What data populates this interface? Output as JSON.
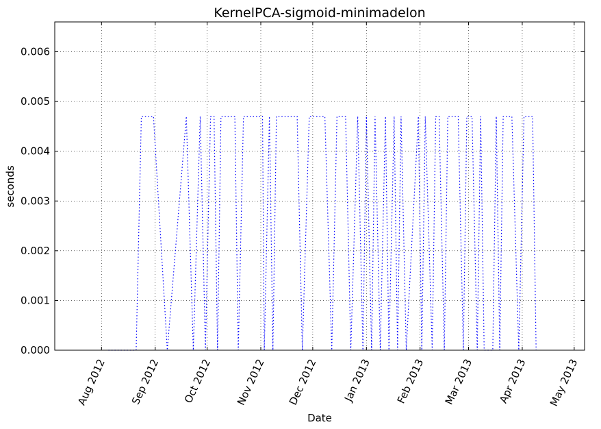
{
  "chart_data": {
    "type": "line",
    "title": "KernelPCA-sigmoid-minimadelon",
    "xlabel": "Date",
    "ylabel": "seconds",
    "x_ticks": [
      "2012-08-01",
      "2012-09-01",
      "2012-10-01",
      "2012-11-01",
      "2012-12-01",
      "2013-01-01",
      "2013-02-01",
      "2013-03-01",
      "2013-04-01",
      "2013-05-01"
    ],
    "x_tick_labels": [
      "Aug 2012",
      "Sep 2012",
      "Oct 2012",
      "Nov 2012",
      "Dec 2012",
      "Jan 2013",
      "Feb 2013",
      "Mar 2013",
      "Apr 2013",
      "May 2013"
    ],
    "xlim": [
      "2012-07-05",
      "2013-05-07"
    ],
    "ylim": [
      0,
      0.0066
    ],
    "y_ticks": [
      0,
      0.001,
      0.002,
      0.003,
      0.004,
      0.005,
      0.006
    ],
    "y_tick_labels": [
      "0.000",
      "0.001",
      "0.002",
      "0.003",
      "0.004",
      "0.005",
      "0.006"
    ],
    "grid": true,
    "line_style": "dotted",
    "series": [
      {
        "color": "#0000ff",
        "points": [
          {
            "x": "2012-08-05",
            "y": 0
          },
          {
            "x": "2012-08-21",
            "y": 0
          },
          {
            "x": "2012-08-24",
            "y": 0.0047
          },
          {
            "x": "2012-08-31",
            "y": 0.0047
          },
          {
            "x": "2012-09-08",
            "y": 0
          },
          {
            "x": "2012-09-19",
            "y": 0.0047
          },
          {
            "x": "2012-09-23",
            "y": 0
          },
          {
            "x": "2012-09-27",
            "y": 0.0047
          },
          {
            "x": "2012-09-30",
            "y": 0
          },
          {
            "x": "2012-10-03",
            "y": 0.0047
          },
          {
            "x": "2012-10-05",
            "y": 0.0047
          },
          {
            "x": "2012-10-07",
            "y": 0
          },
          {
            "x": "2012-10-09",
            "y": 0.0047
          },
          {
            "x": "2012-10-17",
            "y": 0.0047
          },
          {
            "x": "2012-10-19",
            "y": 0
          },
          {
            "x": "2012-10-22",
            "y": 0.0047
          },
          {
            "x": "2012-11-02",
            "y": 0.0047
          },
          {
            "x": "2012-11-03",
            "y": 0
          },
          {
            "x": "2012-11-06",
            "y": 0.0047
          },
          {
            "x": "2012-11-08",
            "y": 0
          },
          {
            "x": "2012-11-10",
            "y": 0.0047
          },
          {
            "x": "2012-11-22",
            "y": 0.0047
          },
          {
            "x": "2012-11-25",
            "y": 0
          },
          {
            "x": "2012-11-29",
            "y": 0.0047
          },
          {
            "x": "2012-12-08",
            "y": 0.0047
          },
          {
            "x": "2012-12-12",
            "y": 0
          },
          {
            "x": "2012-12-15",
            "y": 0.0047
          },
          {
            "x": "2012-12-20",
            "y": 0.0047
          },
          {
            "x": "2012-12-23",
            "y": 0
          },
          {
            "x": "2012-12-27",
            "y": 0.0047
          },
          {
            "x": "2012-12-30",
            "y": 0
          },
          {
            "x": "2013-01-01",
            "y": 0.0047
          },
          {
            "x": "2013-01-04",
            "y": 0
          },
          {
            "x": "2013-01-06",
            "y": 0.0047
          },
          {
            "x": "2013-01-09",
            "y": 0
          },
          {
            "x": "2013-01-12",
            "y": 0.0047
          },
          {
            "x": "2013-01-14",
            "y": 0
          },
          {
            "x": "2013-01-17",
            "y": 0.0047
          },
          {
            "x": "2013-01-19",
            "y": 0
          },
          {
            "x": "2013-01-21",
            "y": 0.0047
          },
          {
            "x": "2013-01-24",
            "y": 0
          },
          {
            "x": "2013-01-31",
            "y": 0.0047
          },
          {
            "x": "2013-02-02",
            "y": 0
          },
          {
            "x": "2013-02-04",
            "y": 0.0047
          },
          {
            "x": "2013-02-08",
            "y": 0
          },
          {
            "x": "2013-02-10",
            "y": 0.0047
          },
          {
            "x": "2013-02-12",
            "y": 0.0047
          },
          {
            "x": "2013-02-15",
            "y": 0
          },
          {
            "x": "2013-02-17",
            "y": 0.0047
          },
          {
            "x": "2013-02-23",
            "y": 0.0047
          },
          {
            "x": "2013-02-26",
            "y": 0
          },
          {
            "x": "2013-02-28",
            "y": 0.0047
          },
          {
            "x": "2013-03-03",
            "y": 0.0047
          },
          {
            "x": "2013-03-06",
            "y": 0
          },
          {
            "x": "2013-03-08",
            "y": 0.0047
          },
          {
            "x": "2013-03-10",
            "y": 0
          },
          {
            "x": "2013-03-15",
            "y": 0
          },
          {
            "x": "2013-03-17",
            "y": 0.0047
          },
          {
            "x": "2013-03-19",
            "y": 0
          },
          {
            "x": "2013-03-21",
            "y": 0.0047
          },
          {
            "x": "2013-03-26",
            "y": 0.0047
          },
          {
            "x": "2013-03-30",
            "y": 0
          },
          {
            "x": "2013-04-02",
            "y": 0.0047
          },
          {
            "x": "2013-04-07",
            "y": 0.0047
          },
          {
            "x": "2013-04-09",
            "y": 0
          }
        ]
      }
    ]
  }
}
